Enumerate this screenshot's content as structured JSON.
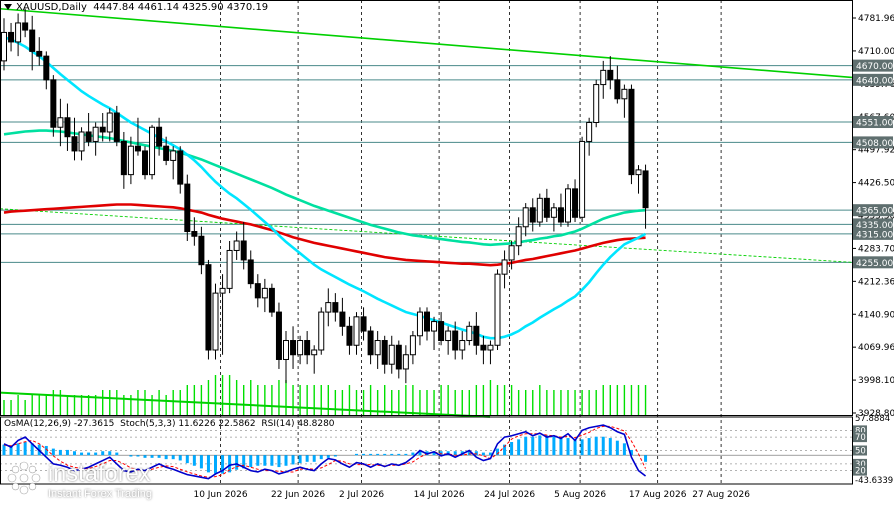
{
  "header": {
    "symbol": "XAUUSD,Daily",
    "ohlc": "4447.84 4461.14 4325.90 4370.19"
  },
  "oscillator_header": {
    "osma": "OsMA(12,26,9) -27.3615",
    "stoch": "Stoch(5,3,3) 11.6226 22.5862",
    "rsi": "RSI(14) 48.8280"
  },
  "watermark": {
    "brand": "instaforex",
    "tagline": "Instant Forex Trading"
  },
  "colors": {
    "bull": "#000000",
    "bear": "#000000",
    "ema_fast": "#00e5ff",
    "ema_mid": "#00e0a0",
    "ema_slow": "#e00000",
    "trendline": "#00d000",
    "level_line": "#4a8a8a",
    "histogram": "#00e000",
    "osma": "#00aaff",
    "stoch_main": "#0000cc",
    "stoch_signal": "#ff0000"
  },
  "chart_data": {
    "type": "candlestick",
    "price_axis_ticks": [
      "4781.96",
      "4710.00",
      "4639.76",
      "4567.60",
      "4497.92",
      "4426.50",
      "4355.30",
      "4283.70",
      "4212.36",
      "4140.90",
      "4069.96",
      "3998.10",
      "3928.80"
    ],
    "price_range": [
      3928.8,
      4800.0
    ],
    "levels": [
      {
        "label": "4670.00",
        "value": 4670.0
      },
      {
        "label": "4640.00",
        "value": 4640.0
      },
      {
        "label": "4551.00",
        "value": 4551.0
      },
      {
        "label": "4508.00",
        "value": 4508.0
      },
      {
        "label": "4365.00",
        "value": 4365.0
      },
      {
        "label": "4335.00",
        "value": 4335.0
      },
      {
        "label": "4315.00",
        "value": 4315.0
      },
      {
        "label": "4255.00",
        "value": 4255.0
      }
    ],
    "date_ticks": [
      "10 Jun 2026",
      "22 Jun 2026",
      "2 Jul 2026",
      "14 Jul 2026",
      "24 Jul 2026",
      "5 Aug 2026",
      "17 Aug 2026",
      "27 Aug 2026"
    ],
    "date_tick_bar_index": [
      31,
      42,
      51,
      62,
      72,
      82,
      93,
      102
    ],
    "osc_axis_ticks": [
      "57.8884",
      "80",
      "70",
      "50",
      "30",
      "20",
      "-43.6339"
    ],
    "candles": [
      [
        4680,
        4770,
        4660,
        4740
      ],
      [
        4740,
        4760,
        4700,
        4720
      ],
      [
        4720,
        4780,
        4690,
        4760
      ],
      [
        4760,
        4790,
        4730,
        4745
      ],
      [
        4745,
        4775,
        4660,
        4700
      ],
      [
        4700,
        4730,
        4670,
        4690
      ],
      [
        4690,
        4700,
        4620,
        4640
      ],
      [
        4640,
        4650,
        4520,
        4540
      ],
      [
        4540,
        4600,
        4500,
        4560
      ],
      [
        4560,
        4590,
        4490,
        4520
      ],
      [
        4520,
        4560,
        4470,
        4490
      ],
      [
        4490,
        4540,
        4470,
        4530
      ],
      [
        4530,
        4570,
        4500,
        4510
      ],
      [
        4510,
        4550,
        4480,
        4540
      ],
      [
        4540,
        4570,
        4510,
        4530
      ],
      [
        4530,
        4580,
        4510,
        4570
      ],
      [
        4570,
        4585,
        4500,
        4510
      ],
      [
        4510,
        4530,
        4410,
        4440
      ],
      [
        4440,
        4520,
        4420,
        4500
      ],
      [
        4500,
        4560,
        4480,
        4490
      ],
      [
        4490,
        4500,
        4430,
        4440
      ],
      [
        4440,
        4545,
        4430,
        4540
      ],
      [
        4540,
        4560,
        4480,
        4500
      ],
      [
        4500,
        4520,
        4460,
        4470
      ],
      [
        4470,
        4500,
        4430,
        4490
      ],
      [
        4490,
        4500,
        4400,
        4420
      ],
      [
        4420,
        4440,
        4300,
        4320
      ],
      [
        4320,
        4350,
        4290,
        4310
      ],
      [
        4310,
        4330,
        4230,
        4250
      ],
      [
        4250,
        4260,
        4050,
        4070
      ],
      [
        4070,
        4210,
        4050,
        4190
      ],
      [
        4190,
        4230,
        4060,
        4200
      ],
      [
        4200,
        4300,
        4190,
        4280
      ],
      [
        4280,
        4320,
        4260,
        4300
      ],
      [
        4300,
        4340,
        4240,
        4260
      ],
      [
        4260,
        4280,
        4200,
        4210
      ],
      [
        4210,
        4230,
        4160,
        4180
      ],
      [
        4180,
        4220,
        4150,
        4200
      ],
      [
        4200,
        4210,
        4140,
        4150
      ],
      [
        4150,
        4170,
        4030,
        4050
      ],
      [
        4050,
        4110,
        4000,
        4090
      ],
      [
        4090,
        4120,
        4030,
        4060
      ],
      [
        4060,
        4100,
        4040,
        4090
      ],
      [
        4090,
        4110,
        4040,
        4060
      ],
      [
        4060,
        4080,
        4020,
        4070
      ],
      [
        4070,
        4160,
        4060,
        4150
      ],
      [
        4150,
        4200,
        4120,
        4170
      ],
      [
        4170,
        4190,
        4130,
        4150
      ],
      [
        4150,
        4180,
        4100,
        4120
      ],
      [
        4120,
        4140,
        4060,
        4080
      ],
      [
        4080,
        4150,
        4060,
        4140
      ],
      [
        4140,
        4160,
        4090,
        4110
      ],
      [
        4110,
        4120,
        4040,
        4060
      ],
      [
        4060,
        4110,
        4030,
        4090
      ],
      [
        4090,
        4100,
        4020,
        4040
      ],
      [
        4040,
        4100,
        4020,
        4080
      ],
      [
        4080,
        4090,
        4010,
        4030
      ],
      [
        4030,
        4080,
        4000,
        4060
      ],
      [
        4060,
        4110,
        4040,
        4100
      ],
      [
        4100,
        4160,
        4080,
        4150
      ],
      [
        4150,
        4160,
        4090,
        4110
      ],
      [
        4110,
        4140,
        4070,
        4130
      ],
      [
        4130,
        4150,
        4080,
        4090
      ],
      [
        4090,
        4120,
        4060,
        4110
      ],
      [
        4110,
        4130,
        4050,
        4070
      ],
      [
        4070,
        4110,
        4050,
        4090
      ],
      [
        4090,
        4130,
        4080,
        4120
      ],
      [
        4120,
        4150,
        4060,
        4080
      ],
      [
        4080,
        4100,
        4040,
        4070
      ],
      [
        4070,
        4090,
        4040,
        4080
      ],
      [
        4080,
        4240,
        4070,
        4230
      ],
      [
        4230,
        4280,
        4200,
        4260
      ],
      [
        4260,
        4300,
        4240,
        4290
      ],
      [
        4290,
        4350,
        4270,
        4330
      ],
      [
        4330,
        4380,
        4310,
        4370
      ],
      [
        4370,
        4390,
        4320,
        4340
      ],
      [
        4340,
        4400,
        4330,
        4390
      ],
      [
        4390,
        4410,
        4340,
        4350
      ],
      [
        4350,
        4380,
        4320,
        4370
      ],
      [
        4370,
        4400,
        4330,
        4340
      ],
      [
        4340,
        4420,
        4330,
        4410
      ],
      [
        4410,
        4430,
        4340,
        4350
      ],
      [
        4350,
        4520,
        4340,
        4510
      ],
      [
        4510,
        4560,
        4480,
        4550
      ],
      [
        4550,
        4640,
        4540,
        4630
      ],
      [
        4630,
        4680,
        4600,
        4660
      ],
      [
        4660,
        4690,
        4620,
        4640
      ],
      [
        4640,
        4670,
        4590,
        4600
      ],
      [
        4600,
        4630,
        4560,
        4620
      ],
      [
        4620,
        4630,
        4420,
        4440
      ],
      [
        4440,
        4460,
        4400,
        4450
      ],
      [
        4447.84,
        4461.14,
        4325.9,
        4370.19
      ]
    ],
    "indicators": {
      "ema_fast": [
        4730,
        4725,
        4718,
        4710,
        4700,
        4690,
        4678,
        4665,
        4652,
        4640,
        4628,
        4616,
        4606,
        4597,
        4588,
        4580,
        4570,
        4560,
        4550,
        4542,
        4534,
        4526,
        4518,
        4510,
        4502,
        4493,
        4482,
        4470,
        4456,
        4440,
        4425,
        4412,
        4400,
        4390,
        4378,
        4366,
        4353,
        4340,
        4327,
        4312,
        4298,
        4286,
        4274,
        4262,
        4250,
        4240,
        4232,
        4224,
        4216,
        4208,
        4201,
        4194,
        4186,
        4178,
        4171,
        4164,
        4157,
        4150,
        4146,
        4142,
        4137,
        4133,
        4128,
        4123,
        4118,
        4113,
        4109,
        4104,
        4098,
        4095,
        4095,
        4098,
        4103,
        4110,
        4120,
        4128,
        4138,
        4147,
        4156,
        4164,
        4174,
        4183,
        4197,
        4213,
        4232,
        4250,
        4266,
        4280,
        4293,
        4300,
        4307,
        4315
      ],
      "ema_mid": [
        4525,
        4527,
        4529,
        4531,
        4532,
        4533,
        4533,
        4532,
        4531,
        4529,
        4527,
        4525,
        4523,
        4521,
        4519,
        4517,
        4514,
        4511,
        4508,
        4505,
        4502,
        4499,
        4496,
        4493,
        4490,
        4486,
        4482,
        4477,
        4472,
        4466,
        4460,
        4454,
        4448,
        4442,
        4436,
        4430,
        4424,
        4418,
        4412,
        4405,
        4398,
        4392,
        4386,
        4380,
        4374,
        4369,
        4364,
        4359,
        4354,
        4349,
        4344,
        4339,
        4334,
        4330,
        4326,
        4322,
        4318,
        4315,
        4312,
        4310,
        4308,
        4306,
        4304,
        4302,
        4300,
        4298,
        4297,
        4295,
        4293,
        4292,
        4293,
        4294,
        4295,
        4297,
        4300,
        4302,
        4305,
        4307,
        4310,
        4312,
        4316,
        4320,
        4326,
        4333,
        4340,
        4347,
        4352,
        4356,
        4360,
        4362,
        4364,
        4365
      ],
      "ema_slow": [
        4360,
        4362,
        4363,
        4364,
        4365,
        4366,
        4367,
        4368,
        4369,
        4370,
        4371,
        4372,
        4373,
        4374,
        4375,
        4376,
        4377,
        4377,
        4377,
        4376,
        4375,
        4374,
        4373,
        4372,
        4371,
        4369,
        4366,
        4363,
        4360,
        4355,
        4351,
        4347,
        4344,
        4341,
        4338,
        4335,
        4331,
        4327,
        4323,
        4318,
        4313,
        4308,
        4304,
        4300,
        4296,
        4293,
        4290,
        4287,
        4284,
        4281,
        4278,
        4275,
        4272,
        4269,
        4266,
        4264,
        4262,
        4260,
        4259,
        4258,
        4257,
        4256,
        4255,
        4254,
        4253,
        4252,
        4252,
        4251,
        4250,
        4249,
        4250,
        4252,
        4254,
        4257,
        4260,
        4262,
        4265,
        4268,
        4271,
        4274,
        4277,
        4280,
        4284,
        4288,
        4292,
        4296,
        4299,
        4302,
        4304,
        4305,
        4306,
        4307
      ],
      "volume": [
        3,
        3,
        4,
        3,
        4,
        4,
        4,
        5,
        5,
        4,
        4,
        4,
        4,
        4,
        5,
        5,
        5,
        4,
        4,
        5,
        5,
        4,
        5,
        4,
        5,
        5,
        6,
        6,
        6,
        7,
        8,
        8,
        8,
        7,
        6,
        7,
        6,
        6,
        6,
        7,
        7,
        6,
        6,
        6,
        6,
        6,
        6,
        5,
        5,
        6,
        5,
        5,
        6,
        5,
        6,
        5,
        5,
        6,
        6,
        5,
        5,
        5,
        6,
        6,
        5,
        5,
        5,
        6,
        6,
        7,
        6,
        6,
        6,
        5,
        5,
        5,
        6,
        5,
        5,
        5,
        5,
        5,
        5,
        5,
        5,
        6,
        6,
        6,
        6,
        6,
        6,
        6
      ],
      "osma": [
        8,
        7,
        9,
        10,
        9,
        8,
        7,
        5,
        4,
        4,
        3,
        2,
        2,
        2,
        3,
        3,
        2,
        0,
        -1,
        -1,
        -2,
        -2,
        -2,
        -3,
        -3,
        -4,
        -6,
        -8,
        -10,
        -13,
        -14,
        -14,
        -13,
        -11,
        -10,
        -9,
        -8,
        -8,
        -8,
        -9,
        -8,
        -7,
        -6,
        -5,
        -5,
        -3,
        -2,
        -1,
        0,
        0,
        1,
        1,
        1,
        1,
        1,
        1,
        1,
        1,
        2,
        3,
        3,
        3,
        3,
        3,
        3,
        3,
        3,
        3,
        2,
        2,
        5,
        8,
        10,
        12,
        14,
        14,
        15,
        15,
        14,
        14,
        13,
        12,
        12,
        13,
        14,
        14,
        13,
        11,
        9,
        4,
        0,
        -5
      ],
      "stoch_main": [
        60,
        55,
        65,
        70,
        60,
        50,
        40,
        30,
        28,
        25,
        20,
        22,
        25,
        30,
        35,
        40,
        30,
        20,
        18,
        22,
        20,
        25,
        30,
        25,
        22,
        18,
        14,
        12,
        10,
        8,
        15,
        20,
        28,
        30,
        25,
        20,
        18,
        22,
        20,
        15,
        18,
        22,
        25,
        22,
        20,
        30,
        38,
        36,
        30,
        25,
        32,
        30,
        25,
        30,
        26,
        30,
        28,
        32,
        40,
        50,
        45,
        48,
        42,
        45,
        40,
        45,
        50,
        40,
        35,
        38,
        60,
        70,
        72,
        75,
        78,
        72,
        76,
        70,
        72,
        68,
        75,
        65,
        80,
        84,
        86,
        88,
        84,
        78,
        74,
        40,
        20,
        12
      ],
      "stoch_signal": [
        58,
        57,
        60,
        63,
        65,
        60,
        52,
        42,
        34,
        28,
        25,
        23,
        23,
        26,
        30,
        35,
        35,
        30,
        24,
        21,
        20,
        22,
        25,
        27,
        26,
        22,
        18,
        15,
        12,
        10,
        11,
        14,
        21,
        26,
        28,
        25,
        22,
        20,
        20,
        19,
        18,
        18,
        22,
        23,
        22,
        24,
        29,
        35,
        34,
        30,
        29,
        29,
        29,
        28,
        27,
        28,
        28,
        30,
        33,
        40,
        45,
        48,
        45,
        45,
        43,
        43,
        45,
        45,
        42,
        38,
        45,
        56,
        67,
        72,
        75,
        75,
        75,
        73,
        72,
        70,
        71,
        69,
        73,
        77,
        83,
        86,
        86,
        83,
        79,
        64,
        45,
        23
      ]
    }
  }
}
